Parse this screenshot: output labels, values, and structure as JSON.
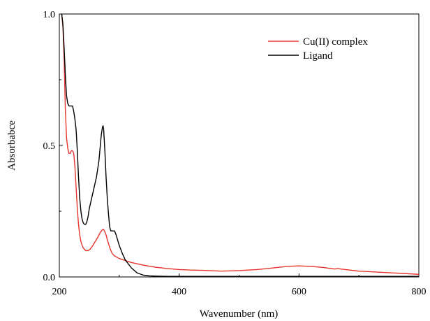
{
  "chart_data": {
    "type": "line",
    "title": "",
    "xlabel": "Wavenumber (nm)",
    "ylabel": "Absorbabce",
    "xlim": [
      200,
      800
    ],
    "ylim": [
      0,
      1.0
    ],
    "xticks": [
      200,
      400,
      600,
      800
    ],
    "xtick_labels": [
      "200",
      "400",
      "600",
      "800"
    ],
    "yticks": [
      0,
      0.5,
      1.0
    ],
    "ytick_labels": [
      "0.0",
      "0.5",
      "1.0"
    ],
    "grid": false,
    "legend_position": "top-right",
    "series": [
      {
        "name": "Cu(II) complex",
        "color": "#e8332a",
        "x": [
          204,
          206,
          208,
          210,
          212,
          214,
          216,
          218,
          220,
          222,
          224,
          226,
          228,
          230,
          232,
          234,
          236,
          238,
          240,
          244,
          248,
          252,
          256,
          260,
          264,
          268,
          272,
          274,
          276,
          278,
          280,
          284,
          288,
          292,
          300,
          320,
          340,
          360,
          380,
          400,
          420,
          440,
          470,
          500,
          530,
          560,
          580,
          600,
          620,
          640,
          660,
          665,
          670,
          700,
          750,
          800
        ],
        "y": [
          1.0,
          0.95,
          0.83,
          0.64,
          0.53,
          0.49,
          0.47,
          0.47,
          0.48,
          0.48,
          0.47,
          0.42,
          0.34,
          0.26,
          0.2,
          0.16,
          0.135,
          0.12,
          0.11,
          0.1,
          0.1,
          0.107,
          0.12,
          0.135,
          0.15,
          0.168,
          0.18,
          0.18,
          0.172,
          0.16,
          0.142,
          0.112,
          0.09,
          0.08,
          0.07,
          0.055,
          0.045,
          0.037,
          0.032,
          0.028,
          0.026,
          0.025,
          0.022,
          0.024,
          0.028,
          0.035,
          0.04,
          0.042,
          0.04,
          0.036,
          0.03,
          0.032,
          0.03,
          0.022,
          0.016,
          0.01
        ]
      },
      {
        "name": "Ligand",
        "color": "#000000",
        "x": [
          204,
          206,
          208,
          210,
          212,
          214,
          216,
          218,
          220,
          222,
          224,
          226,
          228,
          230,
          232,
          234,
          236,
          238,
          240,
          242,
          244,
          246,
          248,
          250,
          254,
          258,
          262,
          266,
          268,
          270,
          272,
          273,
          274,
          276,
          278,
          280,
          282,
          284,
          286,
          288,
          292,
          294,
          296,
          300,
          305,
          310,
          320,
          330,
          340,
          350,
          360,
          380,
          400,
          500,
          600,
          700,
          800
        ],
        "y": [
          1.0,
          0.96,
          0.87,
          0.77,
          0.69,
          0.66,
          0.65,
          0.65,
          0.65,
          0.65,
          0.63,
          0.6,
          0.56,
          0.48,
          0.38,
          0.3,
          0.25,
          0.22,
          0.205,
          0.2,
          0.2,
          0.21,
          0.23,
          0.26,
          0.3,
          0.34,
          0.38,
          0.44,
          0.49,
          0.54,
          0.57,
          0.575,
          0.56,
          0.48,
          0.38,
          0.3,
          0.24,
          0.19,
          0.175,
          0.175,
          0.175,
          0.165,
          0.15,
          0.12,
          0.09,
          0.065,
          0.035,
          0.015,
          0.007,
          0.004,
          0.003,
          0.002,
          0.002,
          0.002,
          0.002,
          0.002,
          0.002
        ]
      }
    ]
  }
}
